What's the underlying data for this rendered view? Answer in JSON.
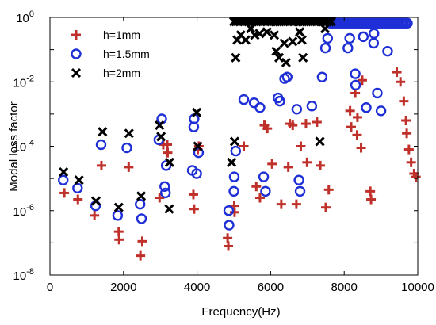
{
  "chart_data": {
    "type": "scatter",
    "xlabel": "Frequency(Hz)",
    "ylabel": "Modal loss factor",
    "xlim": [
      0,
      10000
    ],
    "ylim_log10": [
      -8,
      0
    ],
    "y_scale": "log",
    "grid": false,
    "legend_placement": "top-left",
    "x_ticks": [
      {
        "value": 0,
        "label": "0"
      },
      {
        "value": 2000,
        "label": "2000"
      },
      {
        "value": 4000,
        "label": "4000"
      },
      {
        "value": 6000,
        "label": "6000"
      },
      {
        "value": 8000,
        "label": "8000"
      },
      {
        "value": 10000,
        "label": "10000"
      }
    ],
    "y_ticks": [
      {
        "exp": 0,
        "base": "10",
        "sup": "0"
      },
      {
        "exp": -2,
        "base": "10",
        "sup": "-2"
      },
      {
        "exp": -4,
        "base": "10",
        "sup": "-4"
      },
      {
        "exp": -6,
        "base": "10",
        "sup": "-6"
      },
      {
        "exp": -8,
        "base": "10",
        "sup": "-8"
      }
    ],
    "series": [
      {
        "name": "h=1mm",
        "marker": "plus",
        "color": "#c0302a",
        "points": [
          [
            390,
            -5.45
          ],
          [
            760,
            -5.65
          ],
          [
            1210,
            -6.15
          ],
          [
            1400,
            -4.6
          ],
          [
            1870,
            -6.65
          ],
          [
            1880,
            -6.9
          ],
          [
            2140,
            -4.65
          ],
          [
            2460,
            -7.4
          ],
          [
            2510,
            -6.95
          ],
          [
            2980,
            -5.6
          ],
          [
            3080,
            -3.95
          ],
          [
            3190,
            -3.95
          ],
          [
            3200,
            -4.2
          ],
          [
            3900,
            -5.5
          ],
          [
            3920,
            -5.95
          ],
          [
            4020,
            -4.1
          ],
          [
            4050,
            -4.0
          ],
          [
            4830,
            -6.85
          ],
          [
            4850,
            -7.1
          ],
          [
            5010,
            -5.85
          ],
          [
            5020,
            -6.05
          ],
          [
            5270,
            -4.0
          ],
          [
            5610,
            -5.25
          ],
          [
            5710,
            -5.6
          ],
          [
            5830,
            -3.35
          ],
          [
            5910,
            -3.45
          ],
          [
            6040,
            -4.55
          ],
          [
            6290,
            -5.8
          ],
          [
            6480,
            -4.65
          ],
          [
            6520,
            -3.3
          ],
          [
            6600,
            -3.35
          ],
          [
            6700,
            -5.8
          ],
          [
            6820,
            -4.0
          ],
          [
            6960,
            -3.3
          ],
          [
            6990,
            -4.5
          ],
          [
            7260,
            -3.25
          ],
          [
            7350,
            -4.6
          ],
          [
            7500,
            -5.9
          ],
          [
            7580,
            -5.35
          ],
          [
            8160,
            -2.9
          ],
          [
            8190,
            -3.4
          ],
          [
            8300,
            -2.35
          ],
          [
            8350,
            -3.65
          ],
          [
            8360,
            -3.1
          ],
          [
            8460,
            -4.05
          ],
          [
            8490,
            -1.95
          ],
          [
            8710,
            -5.4
          ],
          [
            8730,
            -5.65
          ],
          [
            9430,
            -1.7
          ],
          [
            9530,
            -2.0
          ],
          [
            9620,
            -2.6
          ],
          [
            9680,
            -3.2
          ],
          [
            9700,
            -3.6
          ],
          [
            9760,
            -4.1
          ],
          [
            9820,
            -4.5
          ],
          [
            9900,
            -4.85
          ],
          [
            9950,
            -4.95
          ]
        ]
      },
      {
        "name": "h=1.5mm",
        "marker": "circle",
        "color": "#1f2fd6",
        "points": [
          [
            360,
            -5.05
          ],
          [
            750,
            -5.3
          ],
          [
            1240,
            -5.85
          ],
          [
            1390,
            -3.95
          ],
          [
            1840,
            -6.15
          ],
          [
            2090,
            -4.05
          ],
          [
            2450,
            -5.8
          ],
          [
            2490,
            -6.25
          ],
          [
            2960,
            -3.8
          ],
          [
            3040,
            -3.15
          ],
          [
            3120,
            -5.25
          ],
          [
            3140,
            -5.45
          ],
          [
            3160,
            -4.6
          ],
          [
            3870,
            -4.75
          ],
          [
            3910,
            -3.4
          ],
          [
            3920,
            -3.15
          ],
          [
            3990,
            -4.85
          ],
          [
            4040,
            -4.2
          ],
          [
            4860,
            -6.0
          ],
          [
            4870,
            -6.45
          ],
          [
            5010,
            -4.95
          ],
          [
            5000,
            -5.4
          ],
          [
            5050,
            -4.15
          ],
          [
            5270,
            -2.55
          ],
          [
            5550,
            -2.65
          ],
          [
            5710,
            -2.8
          ],
          [
            5810,
            -4.95
          ],
          [
            5860,
            -5.4
          ],
          [
            6200,
            -2.5
          ],
          [
            6250,
            -2.6
          ],
          [
            6380,
            -1.9
          ],
          [
            6450,
            -1.85
          ],
          [
            6710,
            -2.85
          ],
          [
            6770,
            -5.05
          ],
          [
            6800,
            -5.4
          ],
          [
            7120,
            -2.75
          ],
          [
            7400,
            -1.85
          ],
          [
            7490,
            -0.95
          ],
          [
            7550,
            -0.65
          ],
          [
            8100,
            -0.95
          ],
          [
            8150,
            -0.65
          ],
          [
            8300,
            -1.75
          ],
          [
            8310,
            -2.1
          ],
          [
            8520,
            -0.6
          ],
          [
            8600,
            -2.8
          ],
          [
            8800,
            -0.8
          ],
          [
            8810,
            -0.5
          ],
          [
            8900,
            -2.35
          ],
          [
            9000,
            -2.9
          ],
          [
            9180,
            -1.05
          ]
        ],
        "dense_band": {
          "x_from": 7620,
          "x_to": 9720,
          "y": -0.18,
          "count": 40
        }
      },
      {
        "name": "h=2mm",
        "marker": "x",
        "color": "#000000",
        "points": [
          [
            370,
            -4.8
          ],
          [
            790,
            -5.05
          ],
          [
            1250,
            -5.7
          ],
          [
            1430,
            -3.55
          ],
          [
            1870,
            -5.9
          ],
          [
            2150,
            -3.6
          ],
          [
            2480,
            -5.55
          ],
          [
            2980,
            -3.35
          ],
          [
            3020,
            -3.7
          ],
          [
            3240,
            -5.95
          ],
          [
            3250,
            -4.5
          ],
          [
            3990,
            -2.95
          ],
          [
            4020,
            -4.0
          ],
          [
            4940,
            -4.5
          ],
          [
            5020,
            -3.85
          ],
          [
            5050,
            -1.25
          ],
          [
            5090,
            -0.7
          ],
          [
            5190,
            -0.55
          ],
          [
            5320,
            -0.7
          ],
          [
            5460,
            -0.35
          ],
          [
            5570,
            -0.55
          ],
          [
            5700,
            -0.5
          ],
          [
            5900,
            -0.45
          ],
          [
            6100,
            -0.55
          ],
          [
            6150,
            -1.05
          ],
          [
            6230,
            -1.25
          ],
          [
            6370,
            -0.8
          ],
          [
            6420,
            -1.4
          ],
          [
            6600,
            -0.75
          ],
          [
            6790,
            -0.45
          ],
          [
            6850,
            -0.7
          ],
          [
            6880,
            -1.25
          ],
          [
            7340,
            -3.85
          ],
          [
            7480,
            -0.35
          ]
        ],
        "dense_band": {
          "x_from": 5000,
          "x_to": 7650,
          "y": -0.13,
          "count": 48
        }
      }
    ]
  }
}
